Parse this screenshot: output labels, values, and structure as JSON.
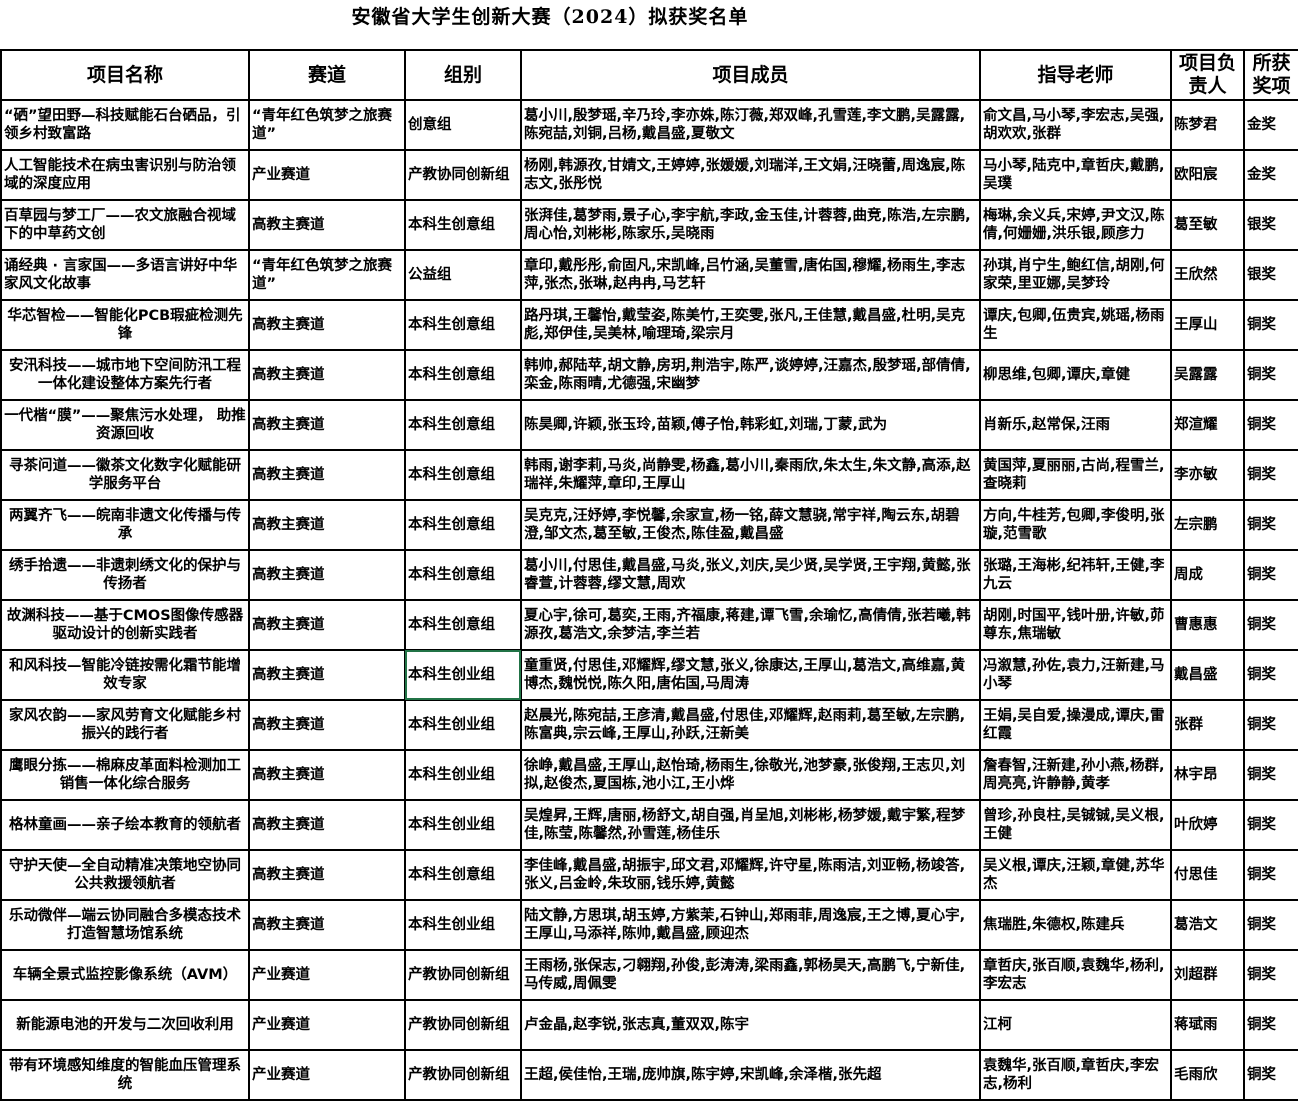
{
  "title": "安徽省大学生创新大赛（2024）拟获奖名单",
  "headers": [
    "项目名称",
    "赛道",
    "组别",
    "项目成员",
    "指导老师",
    "项目负责人",
    "所获奖项"
  ],
  "selection_color": "#217346",
  "rows": [
    {
      "name": "“硒”望田野—科技赋能石台硒品，引领乡村致富路",
      "track": "“青年红色筑梦之旅赛道”",
      "group": "创意组",
      "members": "葛小川,殷梦瑶,辛乃玲,李亦姝,陈汀薇,郑双峰,孔雪莲,李文鹏,吴露露,陈宛喆,刘铜,吕杨,戴昌盛,夏敬文",
      "teachers": "俞文昌,马小琴,李宏志,吴强,胡欢欢,张群",
      "leader": "陈梦君",
      "award": "金奖"
    },
    {
      "name": "人工智能技术在病虫害识别与防治领域的深度应用",
      "track": "产业赛道",
      "group": "产教协同创新组",
      "members": "杨刚,韩源孜,甘婧文,王婷婷,张媛媛,刘瑞洋,王文娟,汪晓蕾,周逸宸,陈志文,张彤悦",
      "teachers": "马小琴,陆克中,章哲庆,戴鹏,吴璞",
      "leader": "欧阳宸",
      "award": "金奖"
    },
    {
      "name": "百草园与梦工厂——农文旅融合视域下的中草药文创",
      "track": "高教主赛道",
      "group": "本科生创意组",
      "members": "张湃佳,葛梦雨,景子心,李宇航,李政,金玉佳,计蓉蓉,曲竞,陈浩,左宗鹏,周心怡,刘彬彬,陈家乐,吴晓雨",
      "teachers": "梅琳,余义兵,宋婷,尹文汉,陈倩,何姗姗,洪乐银,顾彦力",
      "leader": "葛至敏",
      "award": "银奖"
    },
    {
      "name": "诵经典 · 言家国——多语言讲好中华家风文化故事",
      "track": "“青年红色筑梦之旅赛道”",
      "group": "公益组",
      "members": "章印,戴彤彤,俞固凡,宋凯峰,吕竹涵,吴董雪,唐佑国,穆耀,杨雨生,李志萍,张杰,张琳,赵冉冉,马艺轩",
      "teachers": "孙琪,肖宁生,鲍红信,胡刚,何家荣,里亚娜,吴梦玲",
      "leader": "王欣然",
      "award": "银奖"
    },
    {
      "name": "华芯智检——智能化PCB瑕疵检测先锋",
      "track": "高教主赛道",
      "group": "本科生创意组",
      "members": "路丹琪,王馨怡,戴莹姿,陈美竹,王奕雯,张凡,王佳慧,戴昌盛,杜明,吴克彪,郑伊佳,吴美林,喻理琦,梁宗月",
      "teachers": "谭庆,包卿,伍贵宾,姚瑶,杨雨生",
      "leader": "王厚山",
      "award": "铜奖"
    },
    {
      "name": "安汛科技——城市地下空间防汛工程一体化建设整体方案先行者",
      "track": "高教主赛道",
      "group": "本科生创意组",
      "members": "韩帅,郝陆苹,胡文静,房玥,荆浩宇,陈严,谈婷婷,汪嘉杰,殷梦瑶,部倩倩,栾金,陈雨晴,尤德强,宋幽梦",
      "teachers": "柳思维,包卿,谭庆,章健",
      "leader": "吴露露",
      "award": "铜奖"
    },
    {
      "name": "一代楷“膜”——聚焦污水处理， 助推资源回收",
      "track": "高教主赛道",
      "group": "本科生创意组",
      "members": "陈昊卿,许颖,张玉玲,苗颖,傅子怡,韩彩虹,刘瑞,丁蒙,武为",
      "teachers": "肖新乐,赵常保,汪雨",
      "leader": "郑渲耀",
      "award": "铜奖"
    },
    {
      "name": "寻茶问道——徽茶文化数字化赋能研学服务平台",
      "track": "高教主赛道",
      "group": "本科生创意组",
      "members": "韩雨,谢李莉,马炎,尚静雯,杨鑫,葛小川,秦雨欣,朱太生,朱文静,高添,赵瑞祥,朱耀萍,章印,王厚山",
      "teachers": "黄国萍,夏丽丽,古尚,程雪兰,查晓莉",
      "leader": "李亦敏",
      "award": "铜奖"
    },
    {
      "name": "两翼齐飞——皖南非遗文化传播与传承",
      "track": "高教主赛道",
      "group": "本科生创意组",
      "members": "吴克克,汪妤婷,李悦馨,余家宣,杨一铭,薛文慧骁,常宇祥,陶云东,胡碧澄,邹文杰,葛至敏,王俊杰,陈佳盈,戴昌盛",
      "teachers": "方向,牛桂芳,包卿,李俊明,张璇,范雪歌",
      "leader": "左宗鹏",
      "award": "铜奖"
    },
    {
      "name": "绣手拾遗——非遗刺绣文化的保护与传扬者",
      "track": "高教主赛道",
      "group": "本科生创意组",
      "members": "葛小川,付思佳,戴昌盛,马炎,张义,刘庆,吴少贤,吴学贤,王宇翔,黄懿,张睿萱,计蓉蓉,缪文慧,周欢",
      "teachers": "张璐,王海彬,纪祎轩,王健,李九云",
      "leader": "周成",
      "award": "铜奖"
    },
    {
      "name": "故渊科技——基于CMOS图像传感器驱动设计的创新实践者",
      "track": "高教主赛道",
      "group": "本科生创意组",
      "members": "夏心宇,徐可,葛奕,王雨,齐福康,蒋建,谭飞雪,余瑜忆,高倩倩,张若曦,韩源孜,葛浩文,余梦洁,李兰若",
      "teachers": "胡刚,时国平,钱叶册,许敏,茆尊东,焦瑞敏",
      "leader": "曹惠惠",
      "award": "铜奖"
    },
    {
      "name": "和风科技—智能冷链按需化霜节能增效专家",
      "track": "高教主赛道",
      "group": "本科生创业组",
      "members": "童重贤,付思佳,邓耀辉,缪文慧,张义,徐康达,王厚山,葛浩文,高维嘉,黄博杰,魏悦悦,陈久阳,唐佑国,马周涛",
      "teachers": "冯溆慧,孙佐,袁力,汪新建,马小琴",
      "leader": "戴昌盛",
      "award": "铜奖"
    },
    {
      "name": "家风农韵——家风劳育文化赋能乡村振兴的践行者",
      "track": "高教主赛道",
      "group": "本科生创业组",
      "members": "赵晨光,陈宛喆,王彦清,戴昌盛,付思佳,邓耀辉,赵雨莉,葛至敏,左宗鹏,陈富典,宗云峰,王厚山,孙跃,汪新美",
      "teachers": "王娟,吴自爱,操漫成,谭庆,雷红霞",
      "leader": "张群",
      "award": "铜奖"
    },
    {
      "name": "鹰眼分拣——棉麻皮革面料检测加工销售一体化综合服务",
      "track": "高教主赛道",
      "group": "本科生创业组",
      "members": "徐峥,戴昌盛,王厚山,赵怡琦,杨雨生,徐敬光,池梦豪,张俊翔,王志贝,刘拟,赵俊杰,夏国栋,池小江,王小烨",
      "teachers": "詹春智,汪新建,孙小燕,杨群,周亮亮,许静静,黄孝",
      "leader": "林宇昂",
      "award": "铜奖"
    },
    {
      "name": "格林童画——亲子绘本教育的领航者",
      "track": "高教主赛道",
      "group": "本科生创业组",
      "members": "吴煌昇,王辉,唐丽,杨舒文,胡自强,肖呈旭,刘彬彬,杨梦媛,戴宇繁,程梦佳,陈莹,陈馨然,孙雪莲,杨佳乐",
      "teachers": "曾珍,孙良柱,吴铖铖,吴义根,王健",
      "leader": "叶欣婷",
      "award": "铜奖"
    },
    {
      "name": "守护天使—全自动精准决策地空协同公共救援领航者",
      "track": "高教主赛道",
      "group": "本科生创意组",
      "members": "李佳峰,戴昌盛,胡振宇,邱文君,邓耀辉,许守星,陈雨洁,刘亚畅,杨竣答,张义,吕金岭,朱玫丽,钱乐婷,黄懿",
      "teachers": "吴义根,谭庆,汪颖,章健,苏华杰",
      "leader": "付思佳",
      "award": "铜奖"
    },
    {
      "name": "乐动微伴—端云协同融合多模态技术打造智慧场馆系统",
      "track": "高教主赛道",
      "group": "本科生创业组",
      "members": "陆文静,方思琪,胡玉婷,方紫茉,石钟山,郑雨菲,周逸宸,王之博,夏心宇,王厚山,马添祥,陈帅,戴昌盛,顾迎杰",
      "teachers": "焦瑞胜,朱德权,陈建兵",
      "leader": "葛浩文",
      "award": "铜奖"
    },
    {
      "name": "车辆全景式监控影像系统（AVM）",
      "track": "产业赛道",
      "group": "产教协同创新组",
      "members": "王雨杨,张保志,刁翱翔,孙俊,彭涛涛,梁雨鑫,郭杨昊天,高鹏飞,宁新佳,马传威,周佩雯",
      "teachers": "章哲庆,张百顺,袁魏华,杨利,李宏志",
      "leader": "刘超群",
      "award": "铜奖"
    },
    {
      "name": "新能源电池的开发与二次回收利用",
      "track": "产业赛道",
      "group": "产教协同创新组",
      "members": "卢金晶,赵李锐,张志真,董双双,陈宇",
      "teachers": "江柯",
      "leader": "蒋珷雨",
      "award": "铜奖"
    },
    {
      "name": "带有环境感知维度的智能血压管理系统",
      "track": "产业赛道",
      "group": "产教协同创新组",
      "members": "王超,侯佳怡,王瑞,庞帅旗,陈宇婷,宋凯峰,余泽楷,张先超",
      "teachers": "袁魏华,张百顺,章哲庆,李宏志,杨利",
      "leader": "毛雨欣",
      "award": "铜奖"
    }
  ]
}
